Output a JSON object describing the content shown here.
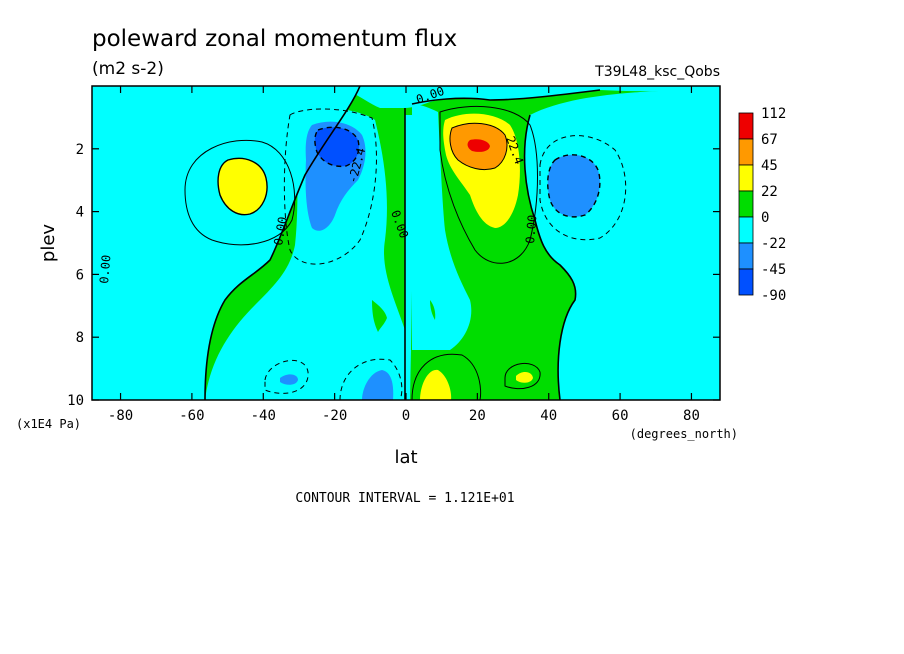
{
  "chart_data": {
    "type": "heatmap",
    "title": "poleward zonal momentum flux",
    "units": "(m2 s-2)",
    "run_label": "T39L48_ksc_Qobs",
    "xlabel": "lat",
    "x_units": "(degrees_north)",
    "ylabel": "plev",
    "y_units": "(x1E4 Pa)",
    "xlim": [
      -88,
      88
    ],
    "ylim": [
      10,
      0
    ],
    "x_ticks": [
      -80,
      -60,
      -40,
      -20,
      0,
      20,
      40,
      60,
      80
    ],
    "x_tick_labels": [
      "-80",
      "-60",
      "-40",
      "-20",
      "0",
      "20",
      "40",
      "60",
      "80"
    ],
    "y_ticks": [
      2,
      4,
      6,
      8,
      10
    ],
    "y_tick_labels": [
      "2",
      "4",
      "6",
      "8",
      "10"
    ],
    "contour_interval_text": "CONTOUR INTERVAL = 1.121E+01",
    "contour_labels": [
      "0.00",
      "0.00",
      "0.00",
      "0.00",
      "0.00",
      "-22.4",
      "22.4"
    ],
    "colorbar": {
      "labels": [
        "112",
        "67",
        "45",
        "22",
        "0",
        "-22",
        "-45",
        "-90"
      ],
      "colors": [
        "#ee0000",
        "#ff9900",
        "#ffff00",
        "#00dd00",
        "#00ffff",
        "#1e90ff",
        "#0050ff"
      ]
    },
    "features": [
      {
        "lat": 20,
        "plev": 2.0,
        "value": 112,
        "sign": "positive"
      },
      {
        "lat": -47,
        "plev": 3.0,
        "value": 35,
        "sign": "positive"
      },
      {
        "lat": -20,
        "plev": 2.0,
        "value": -60,
        "sign": "negative"
      },
      {
        "lat": 47,
        "plev": 3.0,
        "value": -35,
        "sign": "negative"
      }
    ],
    "grid": false
  }
}
